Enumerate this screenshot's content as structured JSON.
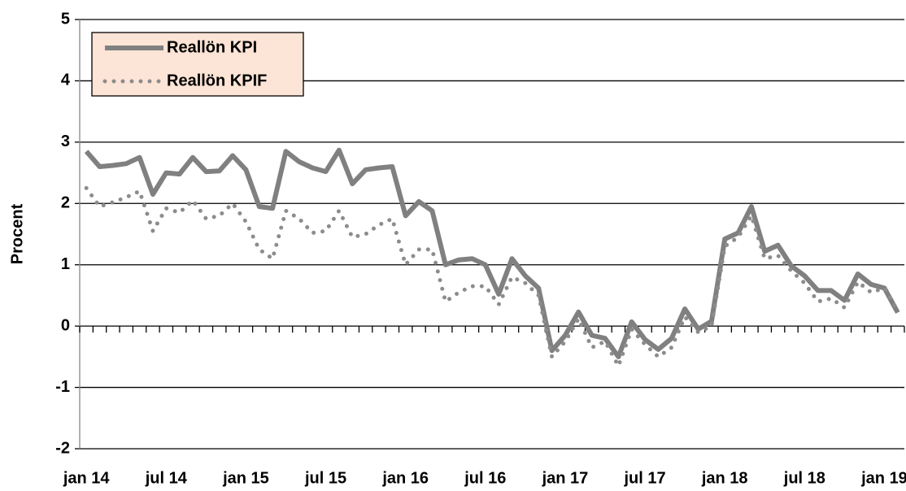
{
  "chart_data": {
    "type": "line",
    "y_label": "Procent",
    "categories": [
      "jan 14",
      null,
      null,
      null,
      null,
      null,
      "jul 14",
      null,
      null,
      null,
      null,
      null,
      "jan 15",
      null,
      null,
      null,
      null,
      null,
      "jul 15",
      null,
      null,
      null,
      null,
      null,
      "jan 16",
      null,
      null,
      null,
      null,
      null,
      "jul 16",
      null,
      null,
      null,
      null,
      null,
      "jan 17",
      null,
      null,
      null,
      null,
      null,
      "jul 17",
      null,
      null,
      null,
      null,
      null,
      "jan 18",
      null,
      null,
      null,
      null,
      null,
      "jul 18",
      null,
      null,
      null,
      null,
      null,
      "jan 19",
      null
    ],
    "series": [
      {
        "name": "Reallön KPI",
        "color": "#808080",
        "style": "solid",
        "values": [
          2.85,
          2.6,
          2.62,
          2.65,
          2.75,
          2.15,
          2.5,
          2.48,
          2.75,
          2.52,
          2.53,
          2.78,
          2.55,
          1.95,
          1.92,
          2.85,
          2.68,
          2.58,
          2.52,
          2.87,
          2.32,
          2.55,
          2.58,
          2.6,
          1.8,
          2.03,
          1.88,
          1.0,
          1.08,
          1.1,
          1.0,
          0.52,
          1.1,
          0.82,
          0.62,
          -0.4,
          -0.15,
          0.23,
          -0.15,
          -0.2,
          -0.5,
          0.07,
          -0.22,
          -0.38,
          -0.2,
          0.28,
          -0.05,
          0.08,
          1.42,
          1.52,
          1.95,
          1.22,
          1.32,
          0.98,
          0.82,
          0.58,
          0.58,
          0.42,
          0.85,
          0.68,
          0.62,
          0.22
        ]
      },
      {
        "name": "Reallön KPIF",
        "color": "#8c8c8c",
        "style": "dotted",
        "values": [
          2.25,
          1.95,
          2.02,
          2.1,
          2.2,
          1.55,
          1.92,
          1.85,
          2.05,
          1.75,
          1.8,
          2.0,
          1.7,
          1.25,
          1.1,
          1.88,
          1.75,
          1.52,
          1.55,
          1.88,
          1.45,
          1.5,
          1.65,
          1.75,
          1.0,
          1.25,
          1.25,
          0.4,
          0.55,
          0.65,
          0.65,
          0.35,
          0.8,
          0.7,
          0.5,
          -0.5,
          -0.25,
          0.12,
          -0.35,
          -0.25,
          -0.65,
          -0.05,
          -0.3,
          -0.5,
          -0.35,
          0.15,
          -0.1,
          0.0,
          1.3,
          1.45,
          1.8,
          1.1,
          1.15,
          0.9,
          0.7,
          0.4,
          0.45,
          0.3,
          0.72,
          0.55,
          0.62,
          0.25
        ]
      }
    ],
    "ylim": [
      -2,
      5
    ],
    "yticks": [
      -2,
      -1,
      0,
      1,
      2,
      3,
      4,
      5
    ],
    "grid": true,
    "legend": "upper left",
    "legend_fill": "#fce4d6"
  }
}
